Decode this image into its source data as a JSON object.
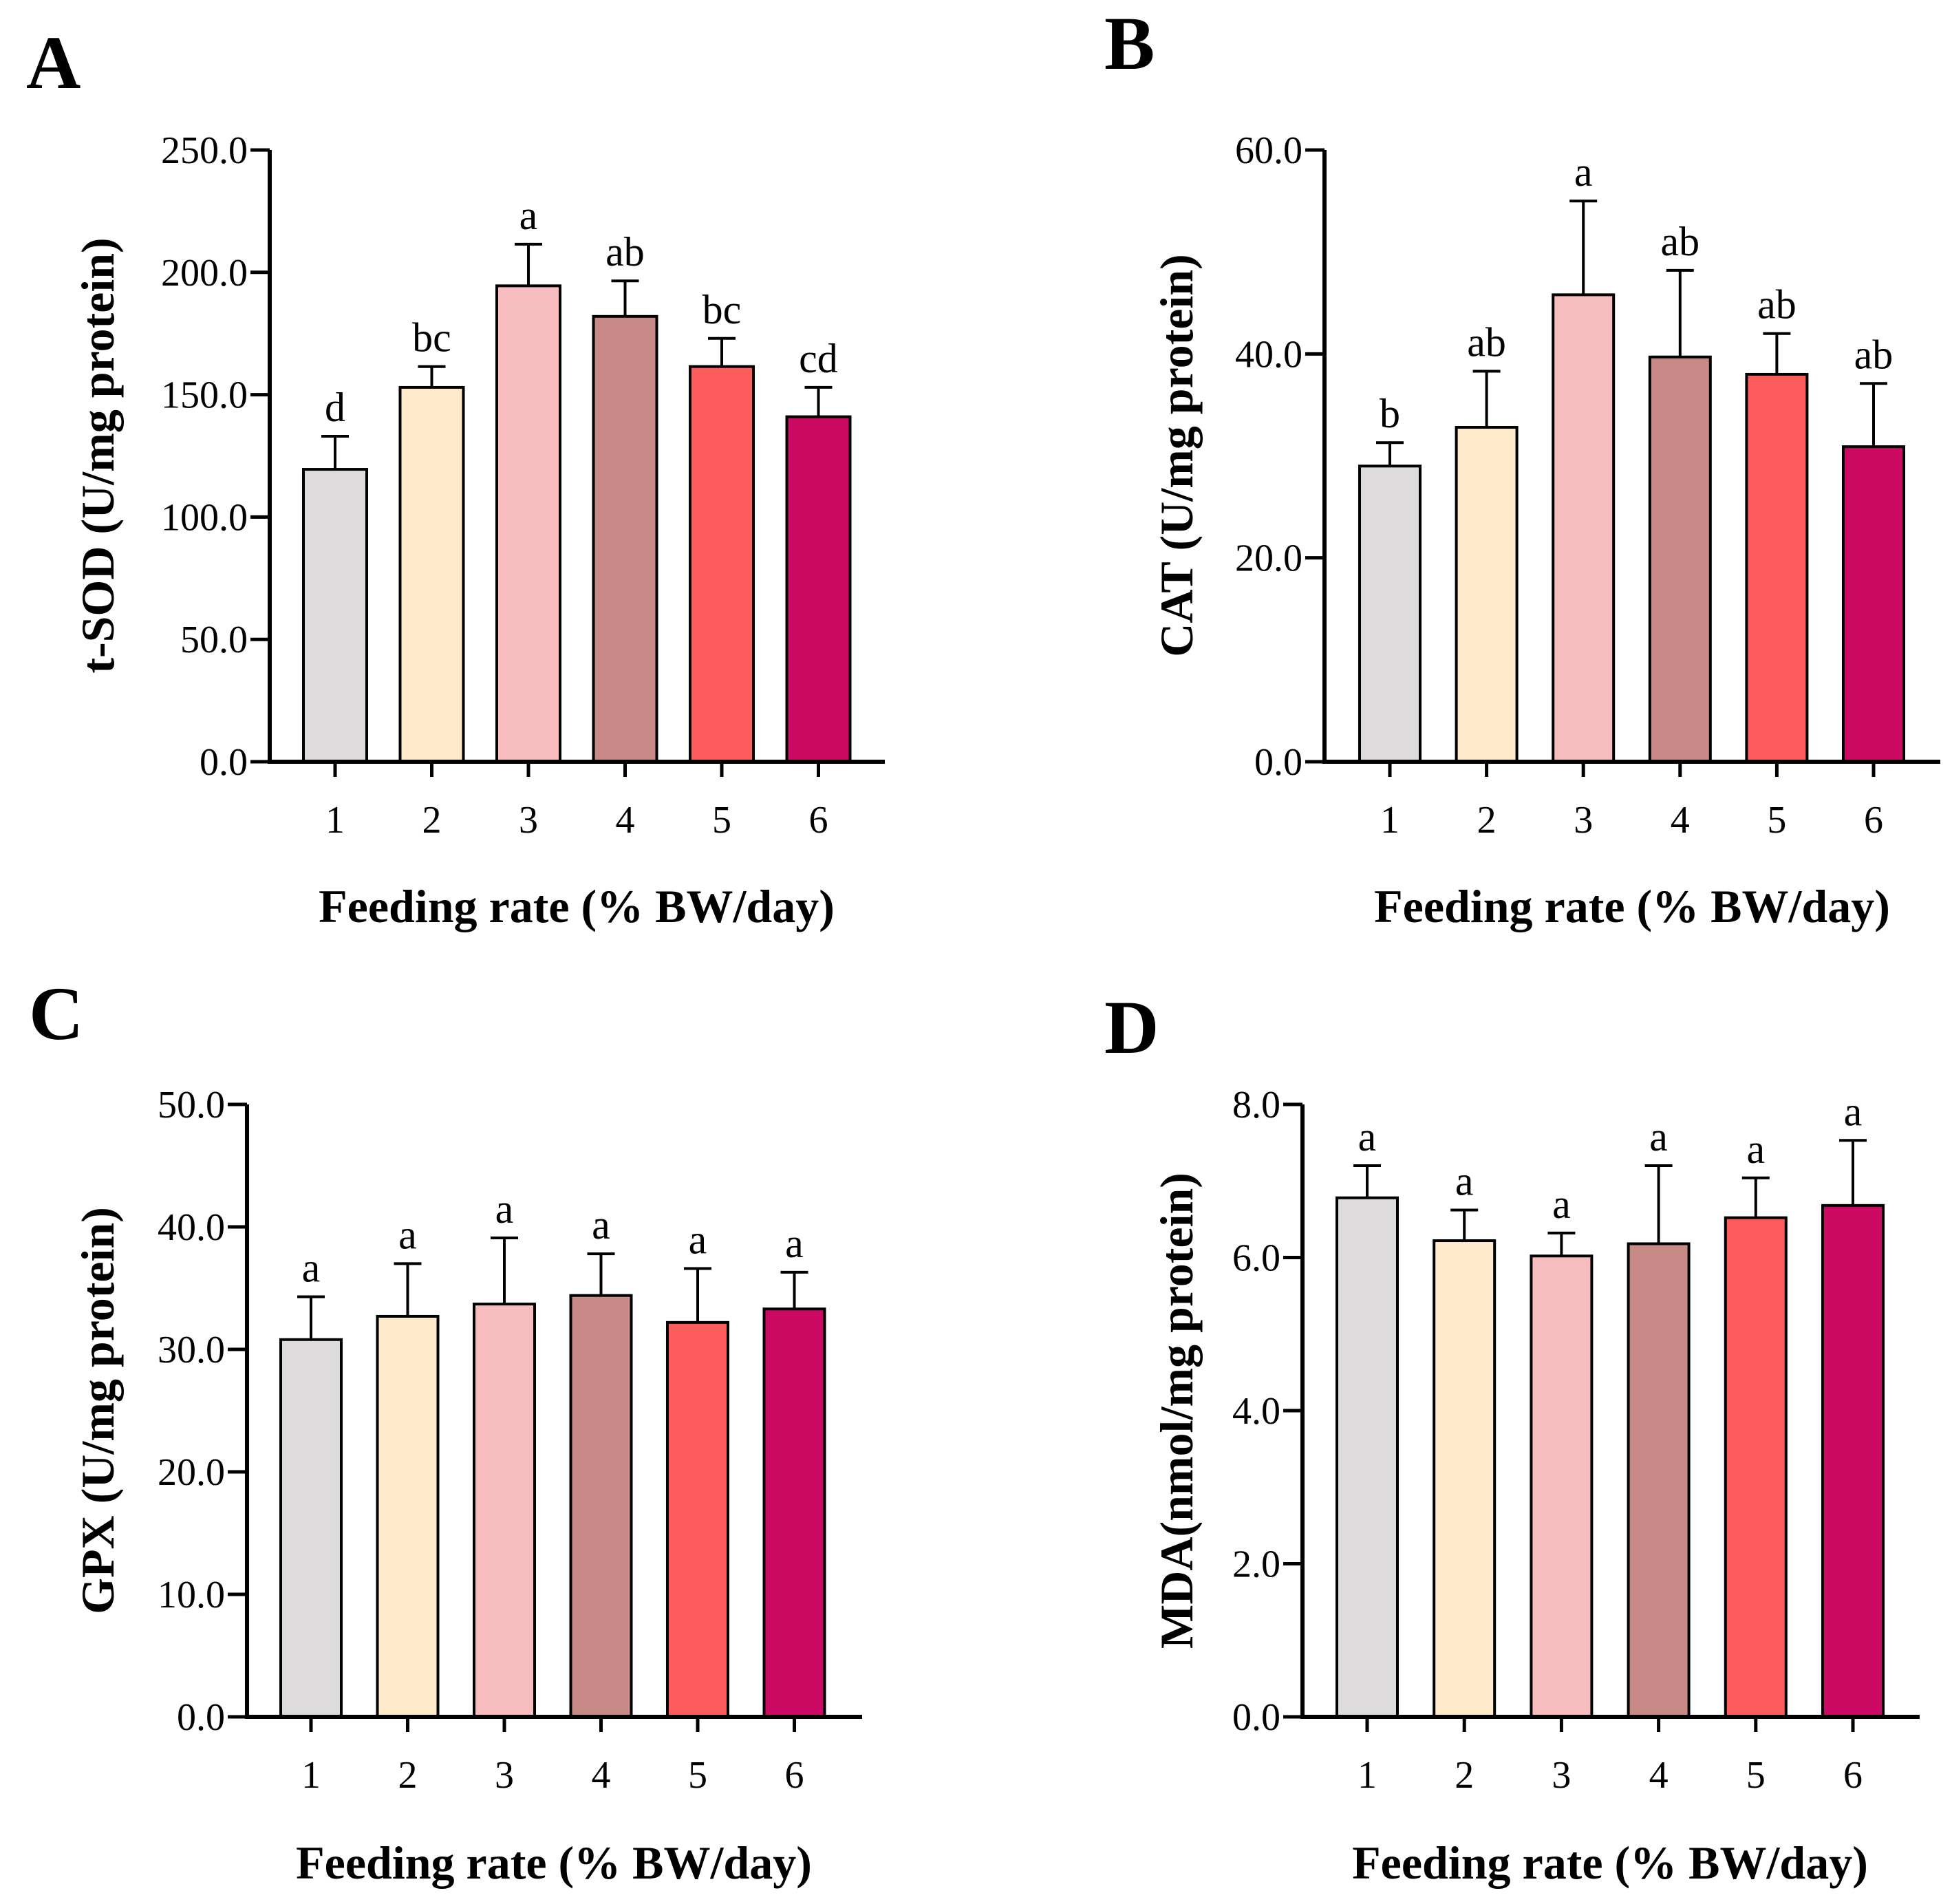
{
  "figure": {
    "colors": [
      "#dddbdc",
      "#fee9cb",
      "#f7bdbe",
      "#c78a86",
      "#fd5c5c",
      "#cd0a63"
    ],
    "xlabel": "Feeding rate (% BW/day)"
  },
  "chart_data": [
    {
      "panel": "A",
      "type": "bar",
      "ylabel": "t-SOD (U/mg protein)",
      "xlabel": "Feeding rate (% BW/day)",
      "categories": [
        "1",
        "2",
        "3",
        "4",
        "5",
        "6"
      ],
      "values": [
        119.5,
        153.0,
        194.5,
        182.0,
        161.5,
        141.0
      ],
      "errors": [
        13.5,
        8.5,
        17.0,
        14.5,
        11.5,
        12.0
      ],
      "significance": [
        "d",
        "bc",
        "a",
        "ab",
        "bc",
        "cd"
      ],
      "ylim": [
        0,
        250
      ],
      "yticks": [
        0,
        50,
        100,
        150,
        200,
        250
      ],
      "ytick_labels": [
        "0.0",
        "50.0",
        "100.0",
        "150.0",
        "200.0",
        "250.0"
      ]
    },
    {
      "panel": "B",
      "type": "bar",
      "ylabel": "CAT (U/mg protein)",
      "xlabel": "Feeding rate (% BW/day)",
      "categories": [
        "1",
        "2",
        "3",
        "4",
        "5",
        "6"
      ],
      "values": [
        29.0,
        32.8,
        45.8,
        39.7,
        38.0,
        30.9
      ],
      "errors": [
        2.3,
        5.5,
        9.2,
        8.5,
        4.0,
        6.2
      ],
      "significance": [
        "b",
        "ab",
        "a",
        "ab",
        "ab",
        "ab"
      ],
      "ylim": [
        0,
        60
      ],
      "yticks": [
        0,
        20,
        40,
        60
      ],
      "ytick_labels": [
        "0.0",
        "20.0",
        "40.0",
        "60.0"
      ]
    },
    {
      "panel": "C",
      "type": "bar",
      "ylabel": "GPX (U/mg protein)",
      "xlabel": "Feeding rate (% BW/day)",
      "categories": [
        "1",
        "2",
        "3",
        "4",
        "5",
        "6"
      ],
      "values": [
        30.8,
        32.7,
        33.7,
        34.4,
        32.2,
        33.3
      ],
      "errors": [
        3.5,
        4.3,
        5.4,
        3.4,
        4.4,
        3.0
      ],
      "significance": [
        "a",
        "a",
        "a",
        "a",
        "a",
        "a"
      ],
      "ylim": [
        0,
        50
      ],
      "yticks": [
        0,
        10,
        20,
        30,
        40,
        50
      ],
      "ytick_labels": [
        "0.0",
        "10.0",
        "20.0",
        "30.0",
        "40.0",
        "50.0"
      ]
    },
    {
      "panel": "D",
      "type": "bar",
      "ylabel": "MDA(nmol/mg protein)",
      "xlabel": "Feeding rate (% BW/day)",
      "categories": [
        "1",
        "2",
        "3",
        "4",
        "5",
        "6"
      ],
      "values": [
        6.78,
        6.22,
        6.02,
        6.18,
        6.52,
        6.68
      ],
      "errors": [
        0.42,
        0.4,
        0.3,
        1.02,
        0.52,
        0.85
      ],
      "significance": [
        "a",
        "a",
        "a",
        "a",
        "a",
        "a"
      ],
      "ylim": [
        0,
        8
      ],
      "yticks": [
        0,
        2,
        4,
        6,
        8
      ],
      "ytick_labels": [
        "0.0",
        "2.0",
        "4.0",
        "6.0",
        "8.0"
      ]
    }
  ]
}
